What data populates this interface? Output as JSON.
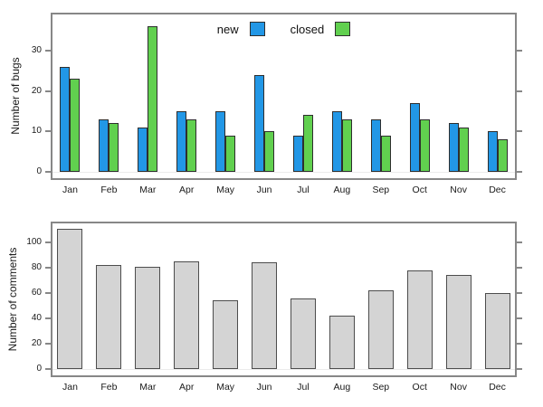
{
  "chart_data": [
    {
      "type": "bar",
      "title": "",
      "ylabel": "Number of bugs",
      "xlabel": "",
      "categories": [
        "Jan",
        "Feb",
        "Mar",
        "Apr",
        "May",
        "Jun",
        "Jul",
        "Aug",
        "Sep",
        "Oct",
        "Nov",
        "Dec"
      ],
      "series": [
        {
          "name": "new",
          "color": "#2297e6",
          "values": [
            26,
            13,
            11,
            15,
            15,
            24,
            9,
            15,
            13,
            17,
            12,
            10
          ]
        },
        {
          "name": "closed",
          "color": "#61d04f",
          "values": [
            23,
            12,
            36,
            13,
            9,
            10,
            14,
            13,
            9,
            13,
            11,
            8
          ]
        }
      ],
      "yticks": [
        0,
        10,
        20,
        30
      ],
      "ylim": [
        0,
        39
      ],
      "legend_position": "top-center",
      "grid": false,
      "bar_border_color": "#2e2e2e"
    },
    {
      "type": "bar",
      "title": "",
      "ylabel": "Number of comments",
      "xlabel": "",
      "categories": [
        "Jan",
        "Feb",
        "Mar",
        "Apr",
        "May",
        "Jun",
        "Jul",
        "Aug",
        "Sep",
        "Oct",
        "Nov",
        "Dec"
      ],
      "series": [
        {
          "name": "comments",
          "color": "#d4d4d4",
          "values": [
            111,
            82,
            81,
            85,
            54,
            84,
            56,
            42,
            62,
            78,
            74,
            60
          ]
        }
      ],
      "yticks": [
        0,
        20,
        40,
        60,
        80,
        100
      ],
      "ylim": [
        0,
        116
      ],
      "legend_position": "none",
      "grid": false,
      "bar_border_color": "#4d4d4d"
    }
  ]
}
